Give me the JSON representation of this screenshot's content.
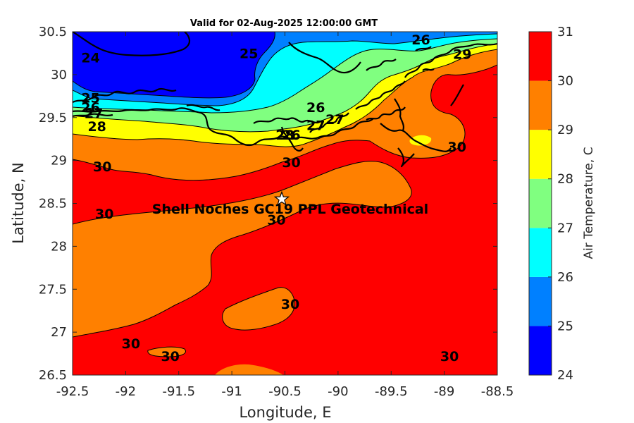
{
  "title": "Valid for 02-Aug-2025 12:00:00 GMT",
  "annotation": "Shell Noches   GC19 PPL  Geotechnical",
  "colorbar_label": "Air Temperature, C",
  "colors": {
    "t24": "#0000ff",
    "t25": "#0080ff",
    "t26": "#00ffff",
    "t27": "#80ff80",
    "t28": "#ffff00",
    "t29": "#ff8000",
    "t30": "#ff0000",
    "t31": "#800000"
  },
  "chart_data": {
    "type": "contourf",
    "xlabel": "Longitude, E",
    "ylabel": "Latitude, N",
    "xlim": [
      -92.5,
      -88.5
    ],
    "ylim": [
      26.5,
      30.5
    ],
    "xticks": [
      -92.5,
      -92,
      -91.5,
      -91,
      -90.5,
      -90,
      -89.5,
      -89,
      -88.5
    ],
    "yticks": [
      26.5,
      27,
      27.5,
      28,
      28.5,
      29,
      29.5,
      30,
      30.5
    ],
    "colorbar": {
      "min": 24,
      "max": 31,
      "ticks": [
        24,
        25,
        26,
        27,
        28,
        29,
        30,
        31
      ]
    },
    "marker": {
      "lon": -90.53,
      "lat": 28.55,
      "symbol": "star"
    },
    "contour_labels": [
      {
        "value": "24",
        "lon": -92.33,
        "lat": 30.2
      },
      {
        "value": "25",
        "lon": -90.84,
        "lat": 30.25
      },
      {
        "value": "26",
        "lon": -89.22,
        "lat": 30.41
      },
      {
        "value": "29",
        "lon": -88.83,
        "lat": 30.24
      },
      {
        "value": "25",
        "lon": -92.33,
        "lat": 29.73
      },
      {
        "value": "26",
        "lon": -92.33,
        "lat": 29.62
      },
      {
        "value": "27",
        "lon": -92.3,
        "lat": 29.55
      },
      {
        "value": "28",
        "lon": -92.27,
        "lat": 29.4
      },
      {
        "value": "26",
        "lon": -90.21,
        "lat": 29.62
      },
      {
        "value": "27",
        "lon": -90.03,
        "lat": 29.48
      },
      {
        "value": "27",
        "lon": -90.21,
        "lat": 29.41
      },
      {
        "value": "26",
        "lon": -90.44,
        "lat": 29.3
      },
      {
        "value": "28",
        "lon": -90.5,
        "lat": 29.3
      },
      {
        "value": "30",
        "lon": -90.44,
        "lat": 28.98
      },
      {
        "value": "30",
        "lon": -92.22,
        "lat": 28.93
      },
      {
        "value": "30",
        "lon": -88.88,
        "lat": 29.16
      },
      {
        "value": "30",
        "lon": -92.2,
        "lat": 28.38
      },
      {
        "value": "30",
        "lon": -90.58,
        "lat": 28.31
      },
      {
        "value": "30",
        "lon": -90.45,
        "lat": 27.33
      },
      {
        "value": "30",
        "lon": -91.95,
        "lat": 26.87
      },
      {
        "value": "30",
        "lon": -91.58,
        "lat": 26.72
      },
      {
        "value": "30",
        "lon": -88.95,
        "lat": 26.72
      }
    ]
  }
}
